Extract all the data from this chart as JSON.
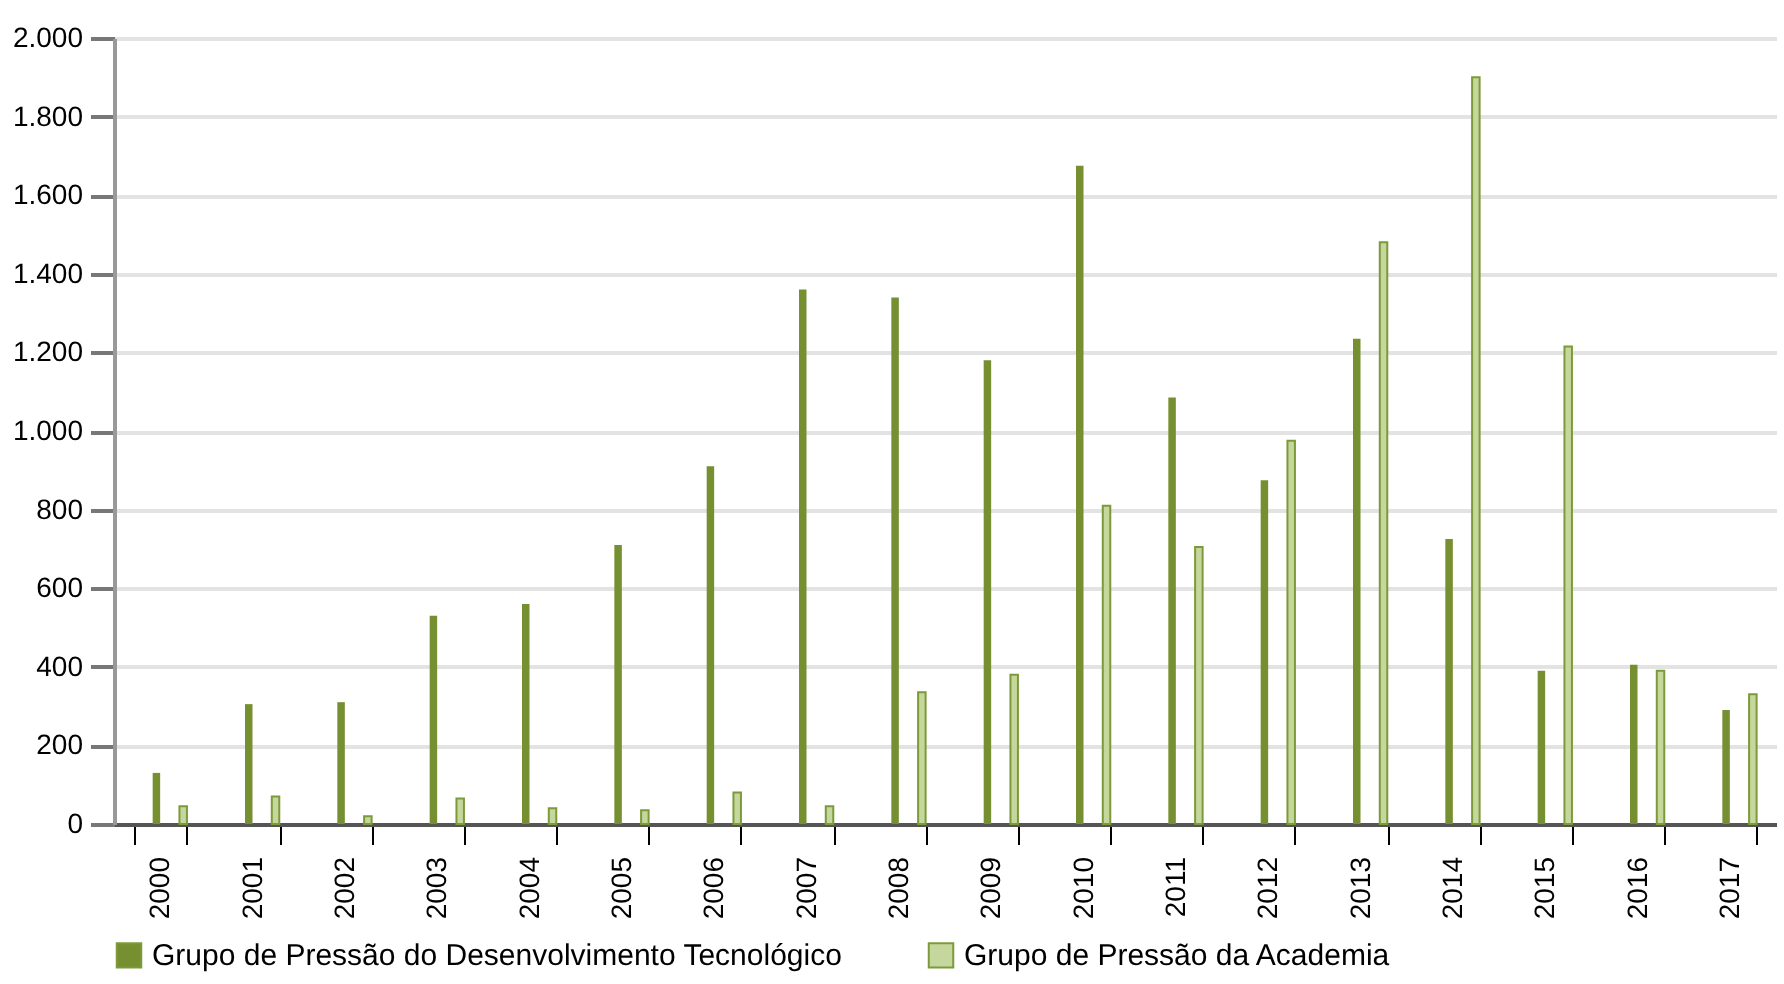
{
  "chart_data": {
    "type": "bar",
    "categories": [
      "2000",
      "2001",
      "2002",
      "2003",
      "2004",
      "2005",
      "2006",
      "2007",
      "2008",
      "2009",
      "2010",
      "2011",
      "2012",
      "2013",
      "2014",
      "2015",
      "2016",
      "2017"
    ],
    "series": [
      {
        "name": "Grupo de Pressão do Desenvolvimento Tecnológico",
        "color": "#758f31",
        "values": [
          130,
          305,
          310,
          530,
          560,
          710,
          910,
          1360,
          1340,
          1180,
          1675,
          1085,
          875,
          1235,
          725,
          390,
          405,
          290
        ]
      },
      {
        "name": "Grupo de Pressão da Academia",
        "color": "#c5d79c",
        "values": [
          45,
          70,
          20,
          65,
          40,
          35,
          80,
          45,
          335,
          380,
          810,
          705,
          975,
          1480,
          1900,
          1215,
          390,
          330
        ]
      }
    ],
    "ylim": [
      0,
      2000
    ],
    "yticks": [
      0,
      200,
      400,
      600,
      800,
      {
        "value": 1000,
        "label": "1.000"
      },
      {
        "value": 1200,
        "label": "1.200"
      },
      {
        "value": 1400,
        "label": "1.400"
      },
      {
        "value": 1600,
        "label": "1.600"
      },
      {
        "value": 1800,
        "label": "1.800"
      },
      {
        "value": 2000,
        "label": "2.000"
      }
    ],
    "grid": "y",
    "legend": "bottom"
  }
}
